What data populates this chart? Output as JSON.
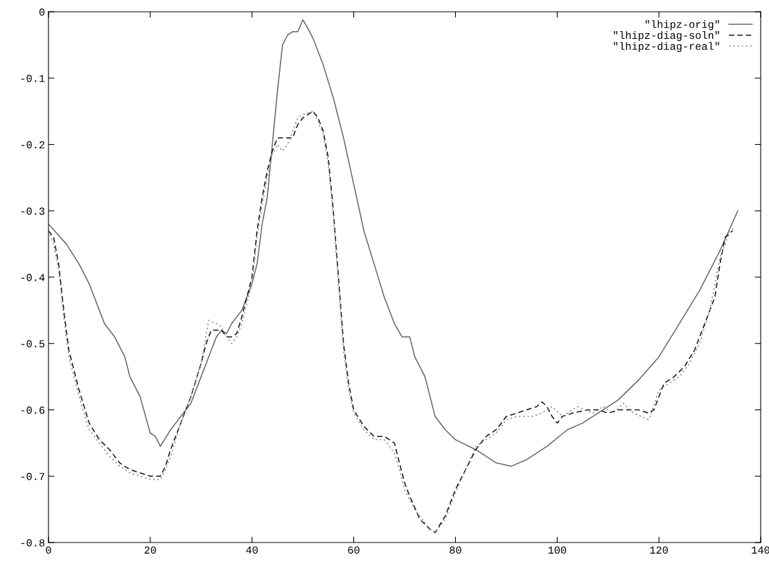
{
  "chart_data": {
    "type": "line",
    "legend": "top right",
    "grid": false,
    "xlim": [
      0,
      140
    ],
    "xticks": [
      0,
      20,
      40,
      60,
      80,
      100,
      120,
      140
    ],
    "ylim": [
      -0.8,
      0
    ],
    "yticks": [
      -0.8,
      -0.7,
      -0.6,
      -0.5,
      -0.4,
      -0.3,
      -0.2,
      -0.1,
      0
    ],
    "series": [
      {
        "name": "\"lhipz-orig\"",
        "color": "#666666",
        "line_style": "solid",
        "x": [
          0,
          3.5,
          6,
          8,
          10,
          11,
          13,
          15,
          16,
          18,
          20,
          21,
          22,
          24,
          26,
          27,
          28,
          30,
          32,
          33,
          34,
          35,
          36,
          38,
          40,
          41,
          42,
          43,
          44,
          45,
          46,
          47,
          48,
          49,
          50,
          51,
          52,
          54,
          56,
          58,
          60,
          62,
          64,
          66,
          68,
          69.5,
          71,
          72,
          74,
          75,
          76,
          78,
          80,
          84,
          88,
          91,
          94,
          98,
          102,
          105,
          108,
          112,
          116,
          120,
          124,
          128,
          132,
          135.5
        ],
        "values": [
          -0.32,
          -0.35,
          -0.38,
          -0.41,
          -0.45,
          -0.47,
          -0.49,
          -0.52,
          -0.55,
          -0.58,
          -0.635,
          -0.64,
          -0.655,
          -0.63,
          -0.61,
          -0.6,
          -0.59,
          -0.55,
          -0.51,
          -0.49,
          -0.48,
          -0.485,
          -0.47,
          -0.45,
          -0.41,
          -0.38,
          -0.32,
          -0.28,
          -0.2,
          -0.12,
          -0.05,
          -0.035,
          -0.03,
          -0.03,
          -0.012,
          -0.025,
          -0.04,
          -0.08,
          -0.13,
          -0.19,
          -0.26,
          -0.33,
          -0.38,
          -0.43,
          -0.47,
          -0.49,
          -0.49,
          -0.52,
          -0.55,
          -0.58,
          -0.61,
          -0.63,
          -0.645,
          -0.66,
          -0.68,
          -0.685,
          -0.675,
          -0.655,
          -0.63,
          -0.62,
          -0.605,
          -0.585,
          -0.555,
          -0.52,
          -0.47,
          -0.42,
          -0.36,
          -0.3
        ]
      },
      {
        "name": "\"lhipz-diag-soln\"",
        "color": "#111111",
        "line_style": "dashed",
        "x": [
          0,
          1,
          2,
          3,
          4,
          6,
          8,
          10,
          12,
          14,
          16,
          18,
          20,
          22,
          23,
          24,
          26,
          28,
          30,
          31,
          32,
          33,
          34,
          35,
          36,
          37,
          38,
          40,
          41,
          42,
          43,
          44,
          45,
          47,
          48,
          49,
          50,
          51,
          52,
          53,
          54,
          55,
          56,
          57,
          58,
          59,
          60,
          62,
          64,
          66,
          68,
          69,
          70,
          71,
          73,
          75,
          76,
          78,
          80,
          82,
          84,
          86,
          88,
          90,
          92,
          94,
          96,
          97,
          98,
          99,
          100,
          101,
          103,
          106,
          108,
          110,
          112,
          114,
          116,
          118,
          119,
          120,
          121,
          123,
          125,
          127,
          129,
          131,
          132,
          133,
          134.5
        ],
        "values": [
          -0.33,
          -0.34,
          -0.38,
          -0.45,
          -0.51,
          -0.57,
          -0.62,
          -0.645,
          -0.66,
          -0.68,
          -0.69,
          -0.695,
          -0.7,
          -0.7,
          -0.685,
          -0.66,
          -0.62,
          -0.58,
          -0.53,
          -0.5,
          -0.48,
          -0.48,
          -0.48,
          -0.49,
          -0.49,
          -0.485,
          -0.46,
          -0.4,
          -0.33,
          -0.28,
          -0.24,
          -0.21,
          -0.19,
          -0.19,
          -0.19,
          -0.17,
          -0.16,
          -0.155,
          -0.15,
          -0.16,
          -0.18,
          -0.22,
          -0.3,
          -0.4,
          -0.5,
          -0.56,
          -0.6,
          -0.625,
          -0.64,
          -0.64,
          -0.65,
          -0.68,
          -0.71,
          -0.73,
          -0.765,
          -0.78,
          -0.785,
          -0.76,
          -0.72,
          -0.69,
          -0.66,
          -0.64,
          -0.63,
          -0.61,
          -0.605,
          -0.6,
          -0.595,
          -0.588,
          -0.595,
          -0.61,
          -0.62,
          -0.61,
          -0.605,
          -0.6,
          -0.6,
          -0.605,
          -0.6,
          -0.6,
          -0.6,
          -0.605,
          -0.6,
          -0.58,
          -0.56,
          -0.55,
          -0.535,
          -0.51,
          -0.47,
          -0.43,
          -0.38,
          -0.34,
          -0.33
        ]
      },
      {
        "name": "\"lhipz-diag-real\"",
        "color": "#888888",
        "line_style": "dotted",
        "x": [
          0,
          1,
          2,
          3,
          4,
          6,
          8,
          10,
          12,
          14,
          16,
          18,
          20,
          22,
          23,
          24,
          26,
          28,
          30,
          31.5,
          33,
          34,
          35,
          36,
          37,
          38,
          40,
          41,
          42,
          43,
          44,
          45,
          46,
          47,
          48,
          49,
          50,
          52,
          53,
          54,
          55,
          56,
          57,
          58,
          59,
          60,
          62,
          64,
          66,
          68,
          69,
          70,
          72,
          75,
          76,
          78,
          80,
          82,
          84,
          86,
          88,
          90,
          92,
          95,
          97,
          99,
          101,
          104,
          107,
          109,
          111,
          113,
          115,
          118,
          120,
          122,
          124,
          126,
          128,
          130,
          132,
          134,
          135
        ],
        "values": [
          -0.33,
          -0.35,
          -0.39,
          -0.46,
          -0.52,
          -0.58,
          -0.63,
          -0.65,
          -0.67,
          -0.685,
          -0.695,
          -0.7,
          -0.705,
          -0.705,
          -0.69,
          -0.67,
          -0.62,
          -0.58,
          -0.53,
          -0.465,
          -0.47,
          -0.475,
          -0.49,
          -0.5,
          -0.49,
          -0.47,
          -0.41,
          -0.34,
          -0.29,
          -0.25,
          -0.215,
          -0.2,
          -0.21,
          -0.2,
          -0.18,
          -0.16,
          -0.155,
          -0.15,
          -0.165,
          -0.185,
          -0.23,
          -0.31,
          -0.41,
          -0.51,
          -0.57,
          -0.605,
          -0.63,
          -0.645,
          -0.645,
          -0.665,
          -0.69,
          -0.72,
          -0.75,
          -0.78,
          -0.785,
          -0.765,
          -0.725,
          -0.69,
          -0.655,
          -0.645,
          -0.635,
          -0.615,
          -0.61,
          -0.61,
          -0.605,
          -0.595,
          -0.61,
          -0.595,
          -0.605,
          -0.595,
          -0.605,
          -0.59,
          -0.605,
          -0.615,
          -0.57,
          -0.56,
          -0.55,
          -0.53,
          -0.5,
          -0.45,
          -0.37,
          -0.33,
          -0.325
        ]
      }
    ]
  }
}
